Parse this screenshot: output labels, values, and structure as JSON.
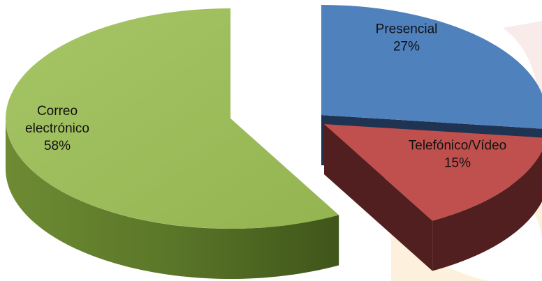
{
  "chart_data": {
    "type": "pie",
    "style": "3d-exploded",
    "title": "",
    "slices": [
      {
        "label": "Presencial",
        "value": 27,
        "display": "27%",
        "color": "#4f81bd",
        "side_color": "#1f3352"
      },
      {
        "label": "Telefónico/Vídeo",
        "value": 15,
        "display": "15%",
        "color": "#c0504d",
        "side_color": "#511f1f"
      },
      {
        "label": "Correo electrónico",
        "label_lines": [
          "Correo",
          "electrónico"
        ],
        "value": 58,
        "display": "58%",
        "color": "#9bbb59",
        "side_color": "#4f6a24"
      }
    ]
  },
  "background": {
    "watermark": "faint-decorative-logo-right-edge",
    "watermark_colors": [
      "#f7dede",
      "#fbe7c8"
    ]
  }
}
